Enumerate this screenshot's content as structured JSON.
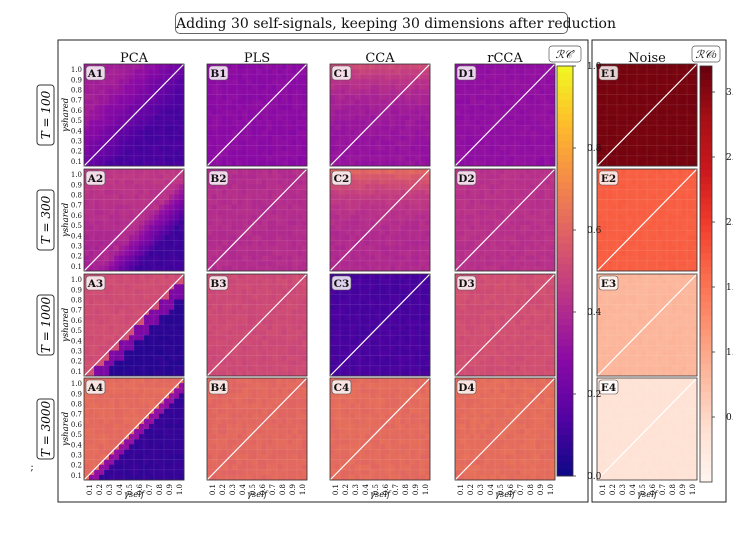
{
  "figure": {
    "title": "Adding 30 self-signals, keeping 30 dimensions after reduction",
    "stray_mark": ";"
  },
  "chart_data": {
    "type": "heatmap",
    "xlabel": "γself",
    "ylabel": "γshared",
    "tick_labels": [
      "0.1",
      "0.2",
      "0.3",
      "0.4",
      "0.5",
      "0.6",
      "0.7",
      "0.8",
      "0.9",
      "1.0"
    ],
    "columns": [
      "PCA",
      "PLS",
      "CCA",
      "rCCA",
      "Noise"
    ],
    "rows": [
      "T = 100",
      "T = 300",
      "T = 1000",
      "T = 3000"
    ],
    "panel_labels": [
      [
        "A1",
        "B1",
        "C1",
        "D1",
        "E1"
      ],
      [
        "A2",
        "B2",
        "C2",
        "D2",
        "E2"
      ],
      [
        "A3",
        "B3",
        "C3",
        "D3",
        "E3"
      ],
      [
        "A4",
        "B4",
        "C4",
        "D4",
        "E4"
      ]
    ],
    "colorbars": [
      {
        "label": "ℛ𝒞′",
        "colormap": "plasma",
        "range": [
          0.0,
          1.0
        ],
        "ticks": [
          "0.0",
          "0.2",
          "0.4",
          "0.6",
          "0.8",
          "1.0"
        ]
      },
      {
        "label": "ℛ𝒞₀",
        "colormap": "Reds",
        "range": [
          0.0,
          3.2
        ],
        "ticks": [
          "0.5",
          "1.0",
          "1.5",
          "2.0",
          "2.5",
          "3.0"
        ]
      }
    ],
    "approx_values_RCprime": {
      "PCA": {
        "T=100": "0.12-0.35",
        "T=300": "0.08-0.45",
        "T=1000": "0.05-0.52",
        "T=3000": "0.08-0.62"
      },
      "PLS": {
        "T=100": "~0.30",
        "T=300": "~0.42",
        "T=1000": "~0.52",
        "T=3000": "~0.62"
      },
      "CCA": {
        "T=100": "0.30-0.50",
        "T=300": "0.38-0.60",
        "T=1000": "~0.12",
        "T=3000": "~0.62"
      },
      "rCCA": {
        "T=100": "~0.33",
        "T=300": "~0.44",
        "T=1000": "~0.53",
        "T=3000": "~0.62"
      }
    },
    "approx_values_RC0": {
      "Noise": {
        "T=100": 3.1,
        "T=300": 1.7,
        "T=1000": 0.85,
        "T=3000": 0.35
      }
    },
    "grid": true
  }
}
